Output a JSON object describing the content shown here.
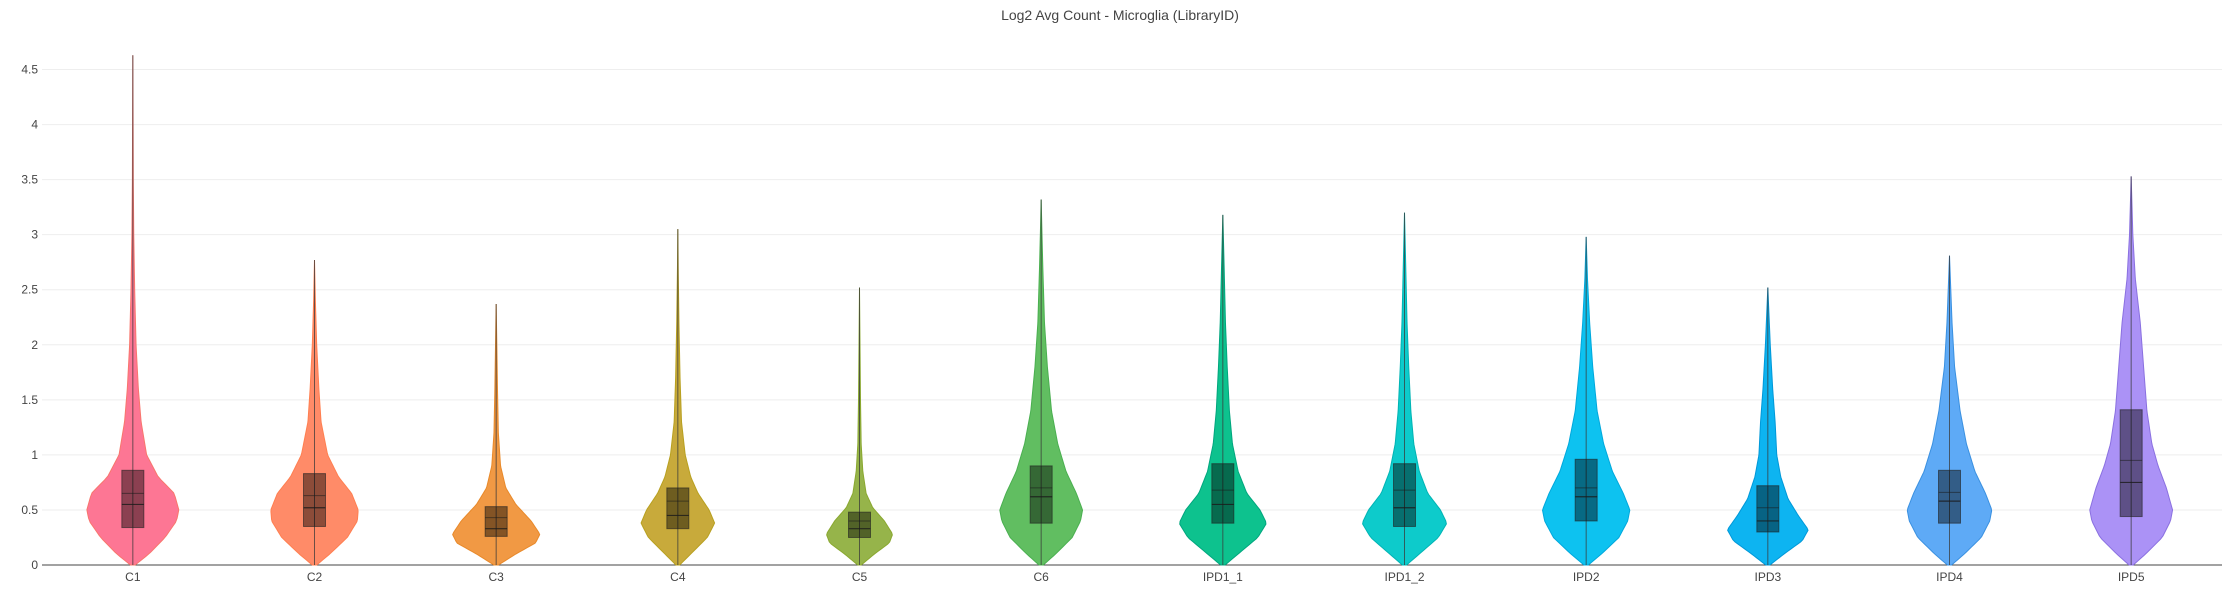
{
  "chart_data": {
    "type": "violin",
    "title": "Log2 Avg Count - Microglia (LibraryID)",
    "xlabel": "",
    "ylabel": "",
    "ylim": [
      0,
      4.75
    ],
    "yticks": [
      "0",
      "0.5",
      "1",
      "1.5",
      "2",
      "2.5",
      "3",
      "3.5",
      "4",
      "4.5"
    ],
    "grid": "horizontal",
    "categories": [
      "C1",
      "C2",
      "C3",
      "C4",
      "C5",
      "C6",
      "IPD1_1",
      "IPD1_2",
      "IPD2",
      "IPD3",
      "IPD4",
      "IPD5"
    ],
    "series": [
      {
        "category": "C1",
        "color": "#f8766d",
        "fill": "#fd6f8e",
        "min": 0.0,
        "q1": 0.34,
        "median": 0.55,
        "mean": 0.65,
        "q3": 0.86,
        "max": 4.63,
        "whisker_hi": 3.05,
        "mode": 0.5,
        "width": 1.0,
        "profile": [
          [
            0,
            0.05
          ],
          [
            0.1,
            0.35
          ],
          [
            0.25,
            0.7
          ],
          [
            0.4,
            0.95
          ],
          [
            0.5,
            1.0
          ],
          [
            0.65,
            0.9
          ],
          [
            0.8,
            0.55
          ],
          [
            1.0,
            0.3
          ],
          [
            1.3,
            0.18
          ],
          [
            1.6,
            0.12
          ],
          [
            2.0,
            0.07
          ],
          [
            2.5,
            0.04
          ],
          [
            3.0,
            0.02
          ],
          [
            3.5,
            0.01
          ],
          [
            4.63,
            0.0
          ]
        ]
      },
      {
        "category": "C2",
        "color": "#ff7f50",
        "fill": "#ff8560",
        "min": 0.0,
        "q1": 0.35,
        "median": 0.52,
        "mean": 0.63,
        "q3": 0.83,
        "max": 2.77,
        "whisker_hi": 2.2,
        "mode": 0.45,
        "width": 0.95,
        "profile": [
          [
            0,
            0.05
          ],
          [
            0.1,
            0.35
          ],
          [
            0.25,
            0.75
          ],
          [
            0.4,
            0.98
          ],
          [
            0.5,
            1.0
          ],
          [
            0.65,
            0.85
          ],
          [
            0.8,
            0.55
          ],
          [
            1.0,
            0.3
          ],
          [
            1.3,
            0.15
          ],
          [
            1.6,
            0.1
          ],
          [
            2.0,
            0.05
          ],
          [
            2.4,
            0.02
          ],
          [
            2.77,
            0.0
          ]
        ]
      },
      {
        "category": "C3",
        "color": "#e8892a",
        "fill": "#f0943a",
        "min": 0.0,
        "q1": 0.26,
        "median": 0.33,
        "mean": 0.43,
        "q3": 0.53,
        "max": 2.37,
        "whisker_hi": 1.8,
        "mode": 0.28,
        "width": 0.95,
        "profile": [
          [
            0,
            0.05
          ],
          [
            0.1,
            0.45
          ],
          [
            0.2,
            0.9
          ],
          [
            0.28,
            1.0
          ],
          [
            0.4,
            0.8
          ],
          [
            0.55,
            0.45
          ],
          [
            0.7,
            0.22
          ],
          [
            0.9,
            0.1
          ],
          [
            1.2,
            0.05
          ],
          [
            1.6,
            0.03
          ],
          [
            2.0,
            0.015
          ],
          [
            2.37,
            0.0
          ]
        ]
      },
      {
        "category": "C4",
        "color": "#b8a020",
        "fill": "#c5a530",
        "min": 0.0,
        "q1": 0.33,
        "median": 0.45,
        "mean": 0.58,
        "q3": 0.7,
        "max": 3.05,
        "whisker_hi": 2.4,
        "mode": 0.4,
        "width": 0.8,
        "profile": [
          [
            0,
            0.05
          ],
          [
            0.1,
            0.35
          ],
          [
            0.25,
            0.8
          ],
          [
            0.38,
            1.0
          ],
          [
            0.5,
            0.85
          ],
          [
            0.65,
            0.55
          ],
          [
            0.8,
            0.35
          ],
          [
            1.0,
            0.2
          ],
          [
            1.3,
            0.1
          ],
          [
            1.7,
            0.06
          ],
          [
            2.2,
            0.03
          ],
          [
            2.7,
            0.01
          ],
          [
            3.05,
            0.0
          ]
        ]
      },
      {
        "category": "C5",
        "color": "#8aa830",
        "fill": "#90b040",
        "min": 0.0,
        "q1": 0.25,
        "median": 0.33,
        "mean": 0.4,
        "q3": 0.48,
        "max": 2.52,
        "whisker_hi": 1.8,
        "mode": 0.28,
        "width": 0.72,
        "profile": [
          [
            0,
            0.05
          ],
          [
            0.1,
            0.45
          ],
          [
            0.2,
            0.9
          ],
          [
            0.28,
            1.0
          ],
          [
            0.4,
            0.75
          ],
          [
            0.52,
            0.4
          ],
          [
            0.65,
            0.2
          ],
          [
            0.85,
            0.1
          ],
          [
            1.1,
            0.05
          ],
          [
            1.5,
            0.03
          ],
          [
            2.0,
            0.015
          ],
          [
            2.52,
            0.0
          ]
        ]
      },
      {
        "category": "C6",
        "color": "#4aaf50",
        "fill": "#58bb58",
        "min": 0.0,
        "q1": 0.38,
        "median": 0.62,
        "mean": 0.7,
        "q3": 0.9,
        "max": 3.32,
        "whisker_hi": 2.8,
        "mode": 0.45,
        "width": 0.9,
        "profile": [
          [
            0,
            0.05
          ],
          [
            0.1,
            0.35
          ],
          [
            0.25,
            0.75
          ],
          [
            0.4,
            0.95
          ],
          [
            0.5,
            1.0
          ],
          [
            0.65,
            0.85
          ],
          [
            0.85,
            0.6
          ],
          [
            1.1,
            0.4
          ],
          [
            1.4,
            0.25
          ],
          [
            1.8,
            0.15
          ],
          [
            2.2,
            0.08
          ],
          [
            2.7,
            0.04
          ],
          [
            3.0,
            0.02
          ],
          [
            3.32,
            0.0
          ]
        ]
      },
      {
        "category": "IPD1_1",
        "color": "#00a67e",
        "fill": "#00bf88",
        "min": 0.0,
        "q1": 0.38,
        "median": 0.55,
        "mean": 0.68,
        "q3": 0.92,
        "max": 3.18,
        "whisker_hi": 2.75,
        "mode": 0.4,
        "width": 0.95,
        "profile": [
          [
            0,
            0.05
          ],
          [
            0.1,
            0.35
          ],
          [
            0.25,
            0.8
          ],
          [
            0.38,
            1.0
          ],
          [
            0.5,
            0.85
          ],
          [
            0.65,
            0.55
          ],
          [
            0.85,
            0.35
          ],
          [
            1.1,
            0.22
          ],
          [
            1.4,
            0.15
          ],
          [
            1.8,
            0.1
          ],
          [
            2.2,
            0.06
          ],
          [
            2.7,
            0.03
          ],
          [
            3.18,
            0.0
          ]
        ]
      },
      {
        "category": "IPD1_2",
        "color": "#00b4b4",
        "fill": "#00c8c8",
        "min": 0.0,
        "q1": 0.35,
        "median": 0.52,
        "mean": 0.68,
        "q3": 0.92,
        "max": 3.2,
        "whisker_hi": 2.8,
        "mode": 0.4,
        "width": 0.92,
        "profile": [
          [
            0,
            0.05
          ],
          [
            0.1,
            0.35
          ],
          [
            0.25,
            0.8
          ],
          [
            0.38,
            1.0
          ],
          [
            0.5,
            0.85
          ],
          [
            0.65,
            0.55
          ],
          [
            0.85,
            0.35
          ],
          [
            1.1,
            0.22
          ],
          [
            1.4,
            0.15
          ],
          [
            1.8,
            0.1
          ],
          [
            2.2,
            0.06
          ],
          [
            2.7,
            0.03
          ],
          [
            3.2,
            0.0
          ]
        ]
      },
      {
        "category": "IPD2",
        "color": "#00a8dc",
        "fill": "#00bfef",
        "min": 0.0,
        "q1": 0.4,
        "median": 0.62,
        "mean": 0.7,
        "q3": 0.96,
        "max": 2.98,
        "whisker_hi": 2.5,
        "mode": 0.45,
        "width": 0.95,
        "profile": [
          [
            0,
            0.05
          ],
          [
            0.1,
            0.35
          ],
          [
            0.25,
            0.75
          ],
          [
            0.4,
            0.95
          ],
          [
            0.5,
            1.0
          ],
          [
            0.65,
            0.85
          ],
          [
            0.85,
            0.6
          ],
          [
            1.1,
            0.4
          ],
          [
            1.4,
            0.25
          ],
          [
            1.8,
            0.15
          ],
          [
            2.2,
            0.08
          ],
          [
            2.6,
            0.03
          ],
          [
            2.98,
            0.0
          ]
        ]
      },
      {
        "category": "IPD3",
        "color": "#0098d8",
        "fill": "#00b0f0",
        "min": 0.0,
        "q1": 0.3,
        "median": 0.4,
        "mean": 0.52,
        "q3": 0.72,
        "max": 2.52,
        "whisker_hi": 2.1,
        "mode": 0.32,
        "width": 0.88,
        "profile": [
          [
            0,
            0.05
          ],
          [
            0.1,
            0.4
          ],
          [
            0.22,
            0.85
          ],
          [
            0.32,
            1.0
          ],
          [
            0.45,
            0.75
          ],
          [
            0.6,
            0.5
          ],
          [
            0.8,
            0.32
          ],
          [
            1.0,
            0.22
          ],
          [
            1.3,
            0.18
          ],
          [
            1.6,
            0.12
          ],
          [
            2.0,
            0.06
          ],
          [
            2.52,
            0.0
          ]
        ]
      },
      {
        "category": "IPD4",
        "color": "#3a90e0",
        "fill": "#55a5f5",
        "min": 0.0,
        "q1": 0.38,
        "median": 0.58,
        "mean": 0.66,
        "q3": 0.86,
        "max": 2.81,
        "whisker_hi": 2.4,
        "mode": 0.45,
        "width": 0.92,
        "profile": [
          [
            0,
            0.05
          ],
          [
            0.1,
            0.35
          ],
          [
            0.25,
            0.75
          ],
          [
            0.4,
            0.95
          ],
          [
            0.5,
            1.0
          ],
          [
            0.65,
            0.85
          ],
          [
            0.85,
            0.6
          ],
          [
            1.1,
            0.4
          ],
          [
            1.4,
            0.25
          ],
          [
            1.8,
            0.12
          ],
          [
            2.2,
            0.06
          ],
          [
            2.81,
            0.0
          ]
        ]
      },
      {
        "category": "IPD5",
        "color": "#8a70e0",
        "fill": "#a68cf5",
        "min": 0.0,
        "q1": 0.44,
        "median": 0.75,
        "mean": 0.95,
        "q3": 1.41,
        "max": 3.53,
        "whisker_hi": 3.0,
        "mode": 0.5,
        "width": 0.9,
        "profile": [
          [
            0,
            0.05
          ],
          [
            0.1,
            0.35
          ],
          [
            0.25,
            0.75
          ],
          [
            0.4,
            0.95
          ],
          [
            0.5,
            1.0
          ],
          [
            0.7,
            0.85
          ],
          [
            0.9,
            0.65
          ],
          [
            1.1,
            0.5
          ],
          [
            1.4,
            0.38
          ],
          [
            1.8,
            0.3
          ],
          [
            2.2,
            0.22
          ],
          [
            2.6,
            0.1
          ],
          [
            3.0,
            0.04
          ],
          [
            3.53,
            0.0
          ]
        ]
      }
    ]
  }
}
